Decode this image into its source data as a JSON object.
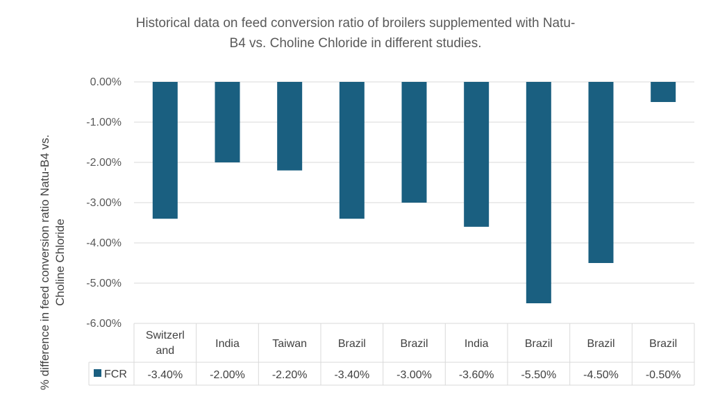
{
  "chart_data": {
    "type": "bar",
    "title_lines": [
      "Historical data on feed conversion ratio of broilers supplemented with Natu-",
      "B4 vs. Choline Chloride in different studies."
    ],
    "ylabel_lines": [
      "% difference in feed conversion ratio Natu-B4 vs.",
      "Choline Chloride"
    ],
    "xlabel": "",
    "categories": [
      "Switzerland",
      "India",
      "Taiwan",
      "Brazil",
      "Brazil",
      "India",
      "Brazil",
      "Brazil",
      "Brazil"
    ],
    "category_display": [
      [
        "Switzerl",
        "and"
      ],
      [
        "India"
      ],
      [
        "Taiwan"
      ],
      [
        "Brazil"
      ],
      [
        "Brazil"
      ],
      [
        "India"
      ],
      [
        "Brazil"
      ],
      [
        "Brazil"
      ],
      [
        "Brazil"
      ]
    ],
    "series": [
      {
        "name": "FCR",
        "color": "#1a5f80",
        "values": [
          -3.4,
          -2.0,
          -2.2,
          -3.4,
          -3.0,
          -3.6,
          -5.5,
          -4.5,
          -0.5
        ],
        "value_labels": [
          "-3.40%",
          "-2.00%",
          "-2.20%",
          "-3.40%",
          "-3.00%",
          "-3.60%",
          "-5.50%",
          "-4.50%",
          "-0.50%"
        ]
      }
    ],
    "ylim": [
      -6,
      0
    ],
    "yticks": [
      0,
      -1,
      -2,
      -3,
      -4,
      -5,
      -6
    ],
    "ytick_labels": [
      "0.00%",
      "-1.00%",
      "-2.00%",
      "-3.00%",
      "-4.00%",
      "-5.00%",
      "-6.00%"
    ],
    "grid": true,
    "data_table": true,
    "gridline_color": "#d9d9d9",
    "table_border_color": "#d9d9d9"
  }
}
